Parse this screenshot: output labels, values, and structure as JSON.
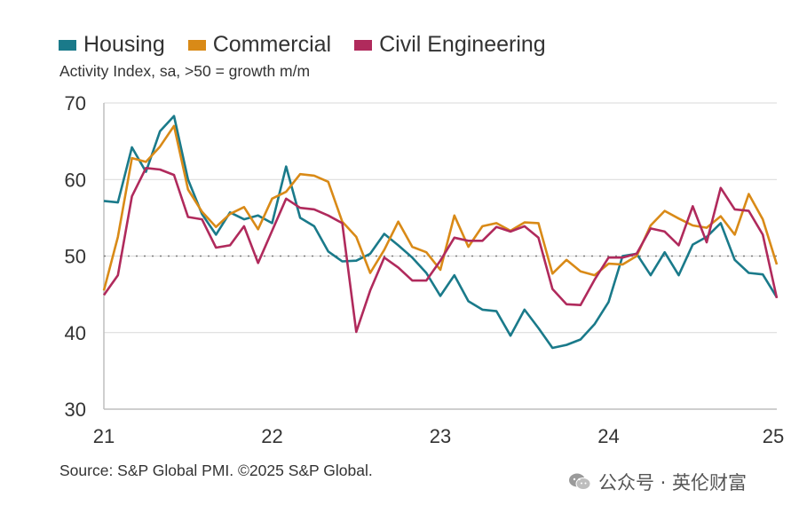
{
  "legend": {
    "items": [
      {
        "label": "Housing",
        "color": "#1a7a8a"
      },
      {
        "label": "Commercial",
        "color": "#d98a17"
      },
      {
        "label": "Civil Engineering",
        "color": "#b02a5c"
      }
    ]
  },
  "subtitle": "Activity Index, sa, >50 = growth m/m",
  "source": "Source: S&P Global PMI. ©2025 S&P Global.",
  "watermark": "公众号 · 英伦财富",
  "chart_data": {
    "type": "line",
    "title": "",
    "xlabel": "",
    "ylabel": "",
    "ylim": [
      30,
      70
    ],
    "yticks": [
      30,
      40,
      50,
      60,
      70
    ],
    "x_ticks": [
      {
        "label": "21",
        "x": 0
      },
      {
        "label": "22",
        "x": 12
      },
      {
        "label": "23",
        "x": 24
      },
      {
        "label": "24",
        "x": 36
      },
      {
        "label": "25",
        "x": 48
      }
    ],
    "x_range": [
      0,
      48
    ],
    "reference_line": 50,
    "series": [
      {
        "name": "Housing",
        "color": "#1a7a8a",
        "values": [
          57.2,
          57.0,
          64.2,
          61.0,
          66.3,
          68.3,
          60.0,
          55.5,
          52.8,
          55.7,
          54.8,
          55.3,
          54.3,
          61.7,
          55.0,
          53.9,
          50.6,
          49.3,
          49.4,
          50.3,
          52.9,
          51.4,
          49.8,
          47.8,
          44.8,
          47.5,
          44.1,
          43.0,
          42.8,
          39.6,
          43.0,
          40.6,
          38.0,
          38.4,
          39.1,
          41.1,
          44.0,
          50.0,
          50.3,
          47.5,
          50.5,
          47.5,
          51.5,
          52.5,
          54.3,
          49.5,
          47.8,
          47.6,
          44.6
        ]
      },
      {
        "name": "Commercial",
        "color": "#d98a17",
        "values": [
          45.5,
          52.5,
          62.8,
          62.3,
          64.3,
          67.0,
          58.7,
          55.8,
          53.8,
          55.5,
          56.4,
          53.5,
          57.5,
          58.4,
          60.7,
          60.5,
          59.7,
          54.5,
          52.5,
          47.8,
          50.8,
          54.5,
          51.2,
          50.5,
          48.2,
          55.3,
          51.2,
          53.9,
          54.3,
          53.3,
          54.4,
          54.3,
          47.7,
          49.5,
          48.0,
          47.5,
          49.0,
          48.9,
          50.0,
          54.0,
          55.9,
          54.9,
          54.0,
          53.7,
          55.2,
          52.8,
          58.1,
          54.8,
          48.9
        ]
      },
      {
        "name": "Civil Engineering",
        "color": "#b02a5c",
        "values": [
          44.9,
          47.5,
          57.8,
          61.5,
          61.3,
          60.6,
          55.1,
          54.8,
          51.1,
          51.4,
          53.9,
          49.1,
          53.3,
          57.5,
          56.3,
          56.1,
          55.3,
          54.3,
          40.1,
          45.5,
          49.8,
          48.5,
          46.8,
          46.8,
          49.4,
          52.4,
          52.0,
          52.0,
          53.8,
          53.2,
          53.9,
          52.4,
          45.7,
          43.7,
          43.6,
          46.9,
          49.8,
          49.8,
          50.3,
          53.6,
          53.2,
          51.4,
          56.5,
          51.8,
          58.9,
          56.1,
          55.9,
          52.8,
          44.5
        ]
      }
    ]
  }
}
